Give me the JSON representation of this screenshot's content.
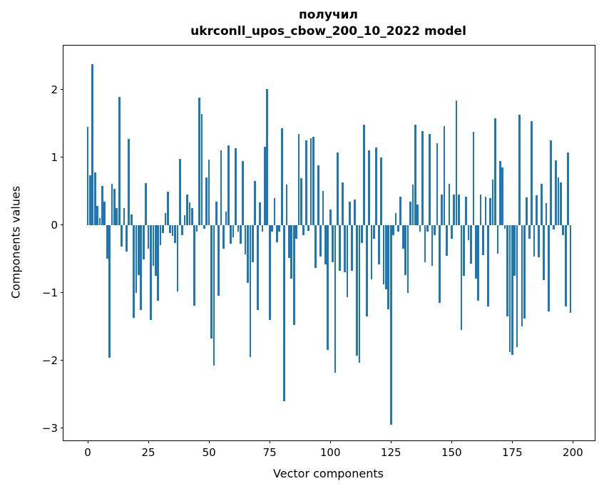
{
  "chart_data": {
    "type": "bar",
    "title_line1": "получил",
    "title_line2": "ukrconll_upos_cbow_200_10_2022 model",
    "xlabel": "Vector components",
    "ylabel": "Components values",
    "legend": null,
    "grid": false,
    "n_components": 200,
    "bar_color": "#1f77b4",
    "axis_color": "#000000",
    "background_color": "#ffffff",
    "bar_width_units": 0.8,
    "xlim": [
      -10,
      209
    ],
    "ylim": [
      -3.18,
      2.65
    ],
    "x_tick_values": [
      0,
      25,
      50,
      75,
      100,
      125,
      150,
      175,
      200
    ],
    "x_tick_labels": [
      "0",
      "25",
      "50",
      "75",
      "100",
      "125",
      "150",
      "175",
      "200"
    ],
    "y_tick_values": [
      -3,
      -2,
      -1,
      0,
      1,
      2
    ],
    "y_tick_labels": [
      "−3",
      "−2",
      "−1",
      "0",
      "1",
      "2"
    ],
    "values": [
      1.45,
      0.73,
      2.38,
      0.78,
      0.28,
      0.1,
      0.58,
      0.35,
      -0.5,
      -1.96,
      0.61,
      0.54,
      0.25,
      1.89,
      -0.32,
      0.25,
      -0.39,
      1.27,
      0.16,
      -1.37,
      -1.0,
      -0.74,
      -1.25,
      -0.51,
      0.62,
      -0.35,
      -1.4,
      -0.6,
      -0.75,
      -1.12,
      -0.3,
      -0.12,
      0.18,
      0.49,
      -0.12,
      -0.16,
      -0.26,
      -0.98,
      0.98,
      -0.15,
      0.15,
      0.45,
      0.33,
      0.25,
      -1.19,
      -0.1,
      1.88,
      1.64,
      -0.05,
      0.7,
      0.97,
      -1.67,
      -2.07,
      0.35,
      -1.04,
      1.1,
      -0.35,
      0.2,
      1.18,
      -0.28,
      -0.18,
      1.13,
      -0.1,
      -0.28,
      0.95,
      -0.43,
      -0.85,
      -1.95,
      -0.55,
      0.65,
      -1.25,
      0.33,
      -0.1,
      1.16,
      2.01,
      -1.4,
      -0.1,
      0.4,
      -0.25,
      -0.1,
      1.43,
      -2.6,
      0.6,
      -0.49,
      -0.79,
      -1.47,
      -0.2,
      1.35,
      0.69,
      -0.15,
      1.25,
      -0.09,
      1.28,
      1.3,
      -0.63,
      0.88,
      -0.47,
      0.5,
      -0.58,
      -1.84,
      0.23,
      -0.55,
      -2.18,
      1.07,
      -0.68,
      0.63,
      -0.7,
      -1.07,
      0.35,
      -0.68,
      0.38,
      -1.93,
      -2.03,
      -0.26,
      1.48,
      -1.35,
      1.1,
      -0.8,
      -0.2,
      1.15,
      -0.58,
      1.0,
      -0.88,
      -0.95,
      -1.24,
      -2.95,
      -0.15,
      0.18,
      -0.1,
      0.42,
      -0.35,
      -0.74,
      -1.0,
      0.35,
      0.6,
      1.48,
      0.3,
      -0.1,
      1.39,
      -0.55,
      -0.1,
      1.34,
      -0.6,
      -0.15,
      1.21,
      -1.15,
      0.45,
      1.46,
      -0.45,
      0.61,
      -0.2,
      0.45,
      1.84,
      0.45,
      -1.55,
      -0.75,
      0.42,
      -0.22,
      -0.57,
      1.38,
      -0.79,
      -1.12,
      0.45,
      -0.44,
      0.42,
      -1.2,
      0.4,
      0.67,
      1.58,
      -0.42,
      0.95,
      0.85,
      -0.05,
      -1.35,
      -1.88,
      -1.92,
      -0.75,
      -1.8,
      1.63,
      -1.5,
      -1.38,
      0.41,
      -0.2,
      1.53,
      -0.47,
      0.44,
      -0.48,
      0.61,
      -0.81,
      0.32,
      -1.28,
      1.25,
      -0.07,
      0.96,
      0.7,
      0.63,
      -0.15,
      -1.2,
      1.07,
      -1.3
    ]
  }
}
